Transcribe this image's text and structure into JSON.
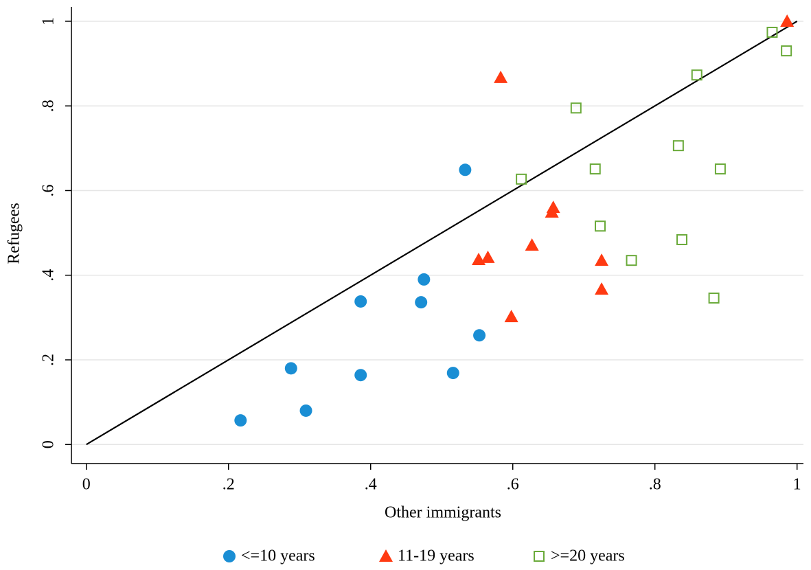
{
  "chart_data": {
    "type": "scatter",
    "x_label": "Other immigrants",
    "y_label": "Refugees",
    "xlim": [
      -0.021,
      1.009
    ],
    "ylim": [
      -0.045,
      1.034
    ],
    "xticks": [
      0,
      {
        "value": 0.2,
        "label": ".2"
      },
      {
        "value": 0.4,
        "label": ".4"
      },
      {
        "value": 0.6,
        "label": ".6"
      },
      {
        "value": 0.8,
        "label": ".8"
      },
      1
    ],
    "yticks": [
      0,
      {
        "value": 0.2,
        "label": ".2"
      },
      {
        "value": 0.4,
        "label": ".4"
      },
      {
        "value": 0.6,
        "label": ".6"
      },
      {
        "value": 0.8,
        "label": ".8"
      },
      1
    ],
    "grid": true,
    "reference_line": "y=x",
    "legend": "bottom",
    "series": [
      {
        "name": "<=10 years",
        "color": "#1a8ed4",
        "marker": "circle",
        "x": [
          0.217,
          0.288,
          0.309,
          0.386,
          0.386,
          0.471,
          0.475,
          0.516,
          0.533,
          0.553
        ],
        "values": [
          0.057,
          0.18,
          0.08,
          0.338,
          0.164,
          0.336,
          0.39,
          0.169,
          0.649,
          0.258
        ]
      },
      {
        "name": "11-19 years",
        "color": "#ff3a12",
        "marker": "triangle",
        "x": [
          0.583,
          0.598,
          0.552,
          0.565,
          0.627,
          0.657,
          0.655,
          0.725,
          0.725,
          0.986
        ],
        "values": [
          0.867,
          0.302,
          0.437,
          0.442,
          0.471,
          0.56,
          0.549,
          0.435,
          0.367,
          1.0
        ]
      },
      {
        "name": ">=20 years",
        "color": "#6aaa3a",
        "marker": "square-open",
        "x": [
          0.965,
          0.985,
          0.859,
          0.689,
          0.833,
          0.716,
          0.892,
          0.612,
          0.723,
          0.838,
          0.767,
          0.883
        ],
        "values": [
          0.974,
          0.93,
          0.873,
          0.795,
          0.706,
          0.651,
          0.651,
          0.627,
          0.516,
          0.484,
          0.435,
          0.346
        ]
      }
    ]
  }
}
